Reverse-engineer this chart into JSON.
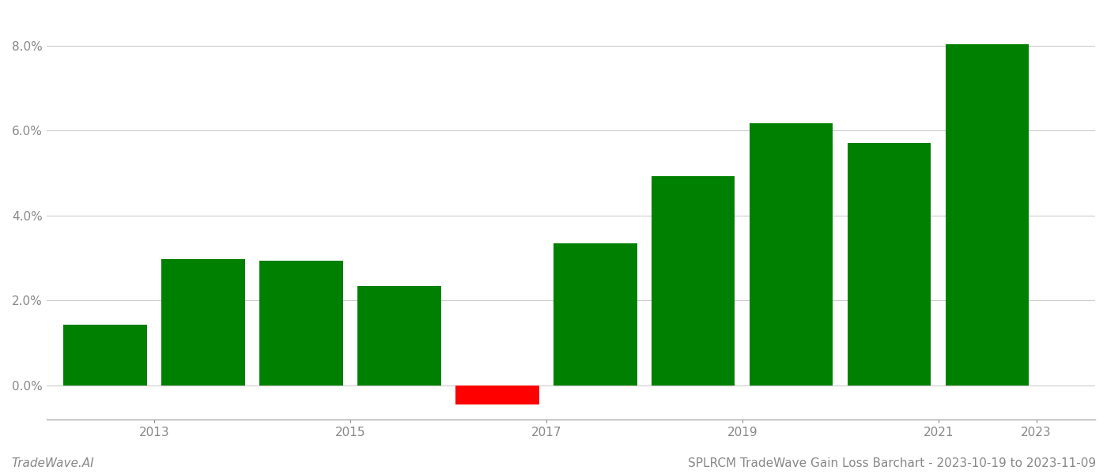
{
  "years": [
    2013,
    2014,
    2015,
    2016,
    2017,
    2018,
    2019,
    2020,
    2021,
    2022
  ],
  "values": [
    0.0143,
    0.0298,
    0.0293,
    0.0234,
    -0.0045,
    0.0335,
    0.0493,
    0.0617,
    0.0572,
    0.0804
  ],
  "bar_colors": [
    "#008000",
    "#008000",
    "#008000",
    "#008000",
    "#ff0000",
    "#008000",
    "#008000",
    "#008000",
    "#008000",
    "#008000"
  ],
  "ylim": [
    -0.008,
    0.088
  ],
  "yticks": [
    0.0,
    0.02,
    0.04,
    0.06,
    0.08
  ],
  "xtick_positions": [
    2013.5,
    2015.5,
    2017.5,
    2019.5,
    2021.5
  ],
  "xtick_labels": [
    "2013",
    "2015",
    "2017",
    "2019",
    "2021"
  ],
  "xlim": [
    2012.4,
    2023.1
  ],
  "footer_left": "TradeWave.AI",
  "footer_right": "SPLRCM TradeWave Gain Loss Barchart - 2023-10-19 to 2023-11-09",
  "background_color": "#ffffff",
  "grid_color": "#cccccc",
  "bar_width": 0.85
}
